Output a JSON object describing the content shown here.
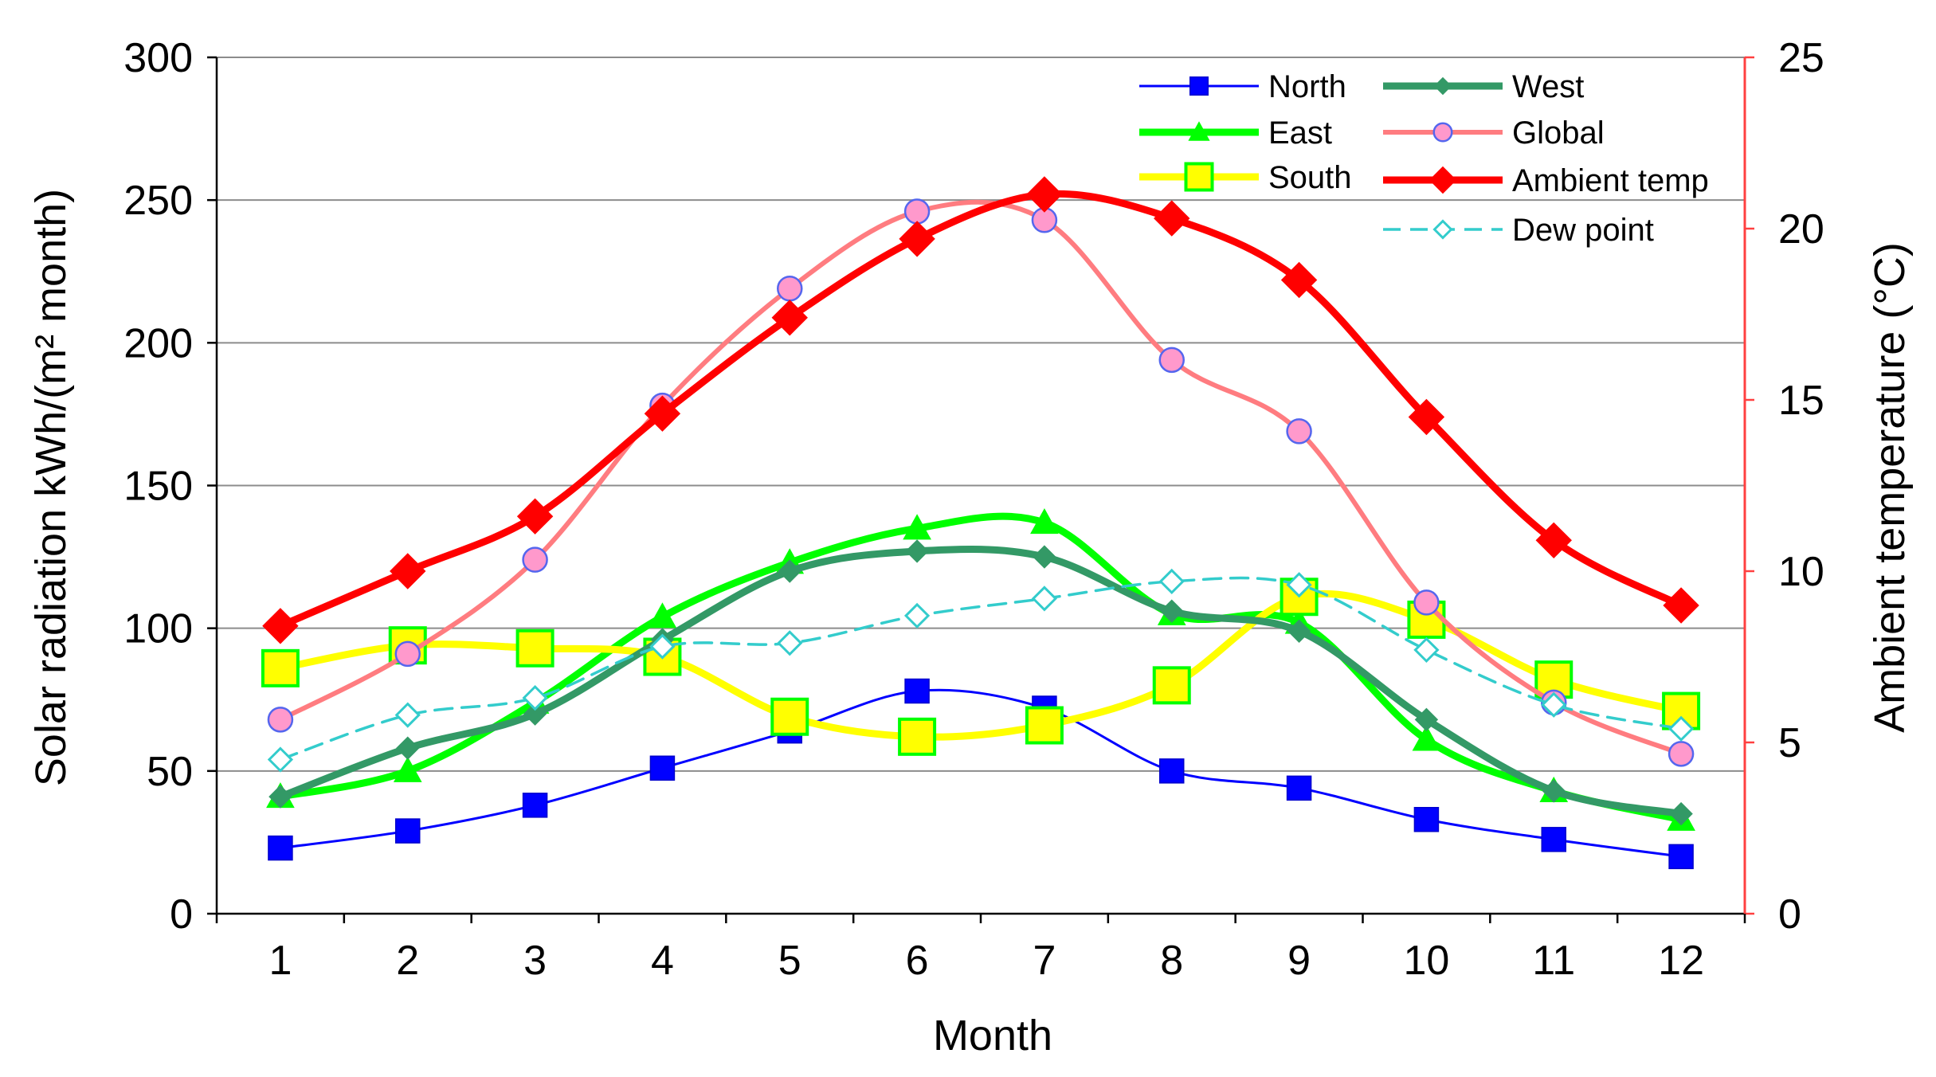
{
  "chart_data": {
    "type": "line",
    "title": "",
    "xlabel": "Month",
    "ylabel": "Solar radiation kWh/(m² month)",
    "y2label": "Ambient  temperature (°C)",
    "x": [
      1,
      2,
      3,
      4,
      5,
      6,
      7,
      8,
      9,
      10,
      11,
      12
    ],
    "ylim": [
      0,
      300
    ],
    "y2lim": [
      0,
      25
    ],
    "yticks": [
      0,
      50,
      100,
      150,
      200,
      250,
      300
    ],
    "y2ticks": [
      0,
      5,
      10,
      15,
      20,
      25
    ],
    "grid": true,
    "legend_position": "top-right",
    "series": [
      {
        "name": "North",
        "axis": "left",
        "color": "#0000ff",
        "marker": "square-filled",
        "line": "solid-thin",
        "values": [
          23,
          29,
          38,
          51,
          64,
          78,
          72,
          50,
          44,
          33,
          26,
          20
        ]
      },
      {
        "name": "East",
        "axis": "left",
        "color": "#00ff00",
        "marker": "triangle",
        "line": "solid-thick",
        "values": [
          41,
          50,
          74,
          104,
          123,
          135,
          137,
          105,
          102,
          61,
          43,
          33
        ]
      },
      {
        "name": "South",
        "axis": "left",
        "color": "#ffff00",
        "marker": "square-hollow",
        "line": "solid-thick",
        "values": [
          86,
          94,
          93,
          90,
          69,
          62,
          66,
          80,
          111,
          103,
          82,
          71
        ]
      },
      {
        "name": "West",
        "axis": "left",
        "color": "#339966",
        "marker": "diamond-filled",
        "line": "solid-thick",
        "values": [
          41,
          58,
          70,
          96,
          120,
          127,
          125,
          106,
          99,
          68,
          43,
          35
        ]
      },
      {
        "name": "Global",
        "axis": "left",
        "color": "#ff7c80",
        "marker": "circle",
        "line": "solid",
        "values": [
          68,
          91,
          124,
          178,
          219,
          246,
          243,
          194,
          169,
          109,
          74,
          56
        ]
      },
      {
        "name": "Ambient temp",
        "axis": "right",
        "color": "#ff0000",
        "marker": "diamond-filled",
        "line": "solid-thick",
        "values": [
          8.4,
          10.0,
          11.6,
          14.6,
          17.4,
          19.7,
          21.0,
          20.3,
          18.5,
          14.5,
          10.9,
          9.0
        ]
      },
      {
        "name": "Dew point",
        "axis": "right",
        "color": "#33cccc",
        "marker": "diamond-hollow",
        "line": "dashed",
        "values": [
          4.5,
          5.8,
          6.3,
          7.8,
          7.9,
          8.7,
          9.2,
          9.7,
          9.6,
          7.7,
          6.1,
          5.4
        ]
      }
    ]
  }
}
